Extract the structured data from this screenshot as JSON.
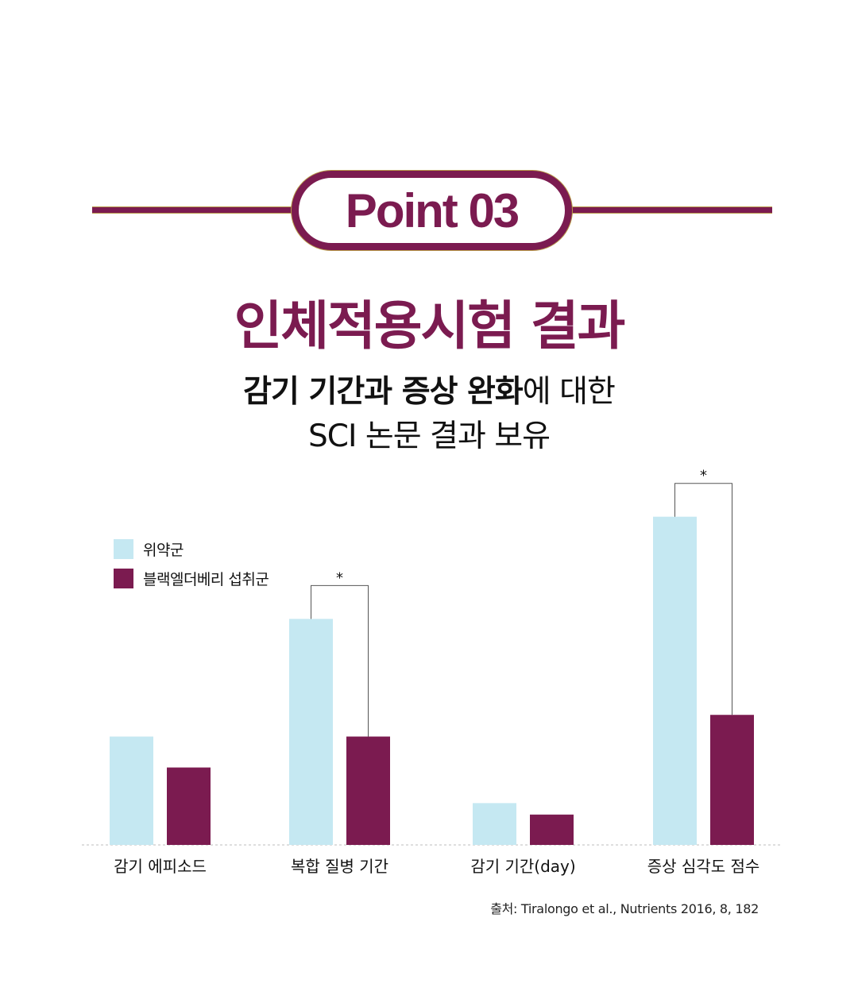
{
  "badge": {
    "label": "Point 03"
  },
  "title": "인체적용시험 결과",
  "subtitle": {
    "bold_part": "감기 기간과 증상 완화",
    "regular_part": "에 대한",
    "line2": "SCI 논문 결과 보유"
  },
  "source": "출처: Tiralongo et al., Nutrients 2016, 8, 182",
  "colors": {
    "brand": "#7b1b50",
    "placebo": "#c5e8f2",
    "elderberry": "#7b1b50"
  },
  "chart_data": {
    "type": "bar",
    "categories": [
      "감기 에피소드",
      "복합 질병 기간",
      "감기 기간(day)",
      "증상 심각도 점수"
    ],
    "series": [
      {
        "name": "위약군",
        "values": [
          3.5,
          7.3,
          1.35,
          10.6
        ]
      },
      {
        "name": "블랙엘더베리 섭취군",
        "values": [
          2.5,
          3.5,
          0.98,
          4.2
        ]
      }
    ],
    "significance": [
      {
        "category_index": 1,
        "label": "*"
      },
      {
        "category_index": 3,
        "label": "*"
      }
    ],
    "legend_position": "top-left",
    "grid": false,
    "ylim": [
      0,
      12
    ]
  }
}
